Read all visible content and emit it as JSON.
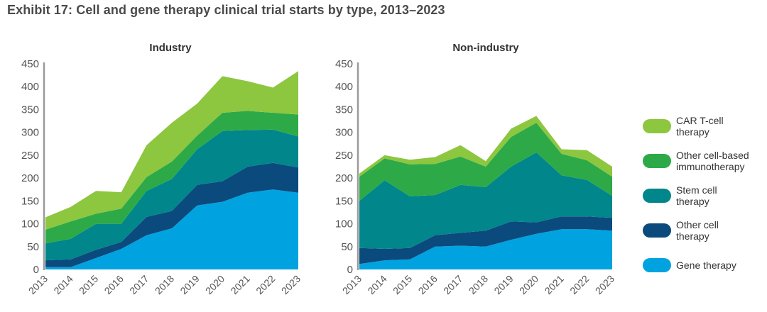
{
  "title": "Exhibit 17: Cell and gene therapy clinical trial starts by type, 2013–2023",
  "chart_data": [
    {
      "type": "area",
      "stacked": true,
      "title": "Industry",
      "xlabel": "",
      "ylabel": "",
      "ylim": [
        0,
        450
      ],
      "yticks": [
        0,
        50,
        100,
        150,
        200,
        250,
        300,
        350,
        400,
        450
      ],
      "categories": [
        "2013",
        "2014",
        "2015",
        "2016",
        "2017",
        "2018",
        "2019",
        "2020",
        "2021",
        "2022",
        "2023"
      ],
      "series": [
        {
          "name": "Gene therapy",
          "color": "#00a3e0",
          "values": [
            5,
            5,
            25,
            45,
            75,
            90,
            140,
            148,
            168,
            175,
            168
          ]
        },
        {
          "name": "Other cell therapy",
          "color": "#0b4a7d",
          "values": [
            15,
            17,
            18,
            15,
            40,
            38,
            45,
            45,
            57,
            58,
            55
          ]
        },
        {
          "name": "Stem cell therapy",
          "color": "#00868b",
          "values": [
            37,
            45,
            57,
            40,
            57,
            70,
            78,
            110,
            80,
            73,
            68
          ]
        },
        {
          "name": "Other cell-based immunotherapy",
          "color": "#2daa47",
          "values": [
            30,
            38,
            22,
            33,
            30,
            38,
            30,
            40,
            42,
            37,
            48
          ]
        },
        {
          "name": "CAR T-cell therapy",
          "color": "#8dc63f",
          "values": [
            27,
            32,
            50,
            36,
            70,
            85,
            70,
            80,
            65,
            55,
            95
          ]
        }
      ]
    },
    {
      "type": "area",
      "stacked": true,
      "title": "Non-industry",
      "xlabel": "",
      "ylabel": "",
      "ylim": [
        0,
        450
      ],
      "yticks": [
        0,
        50,
        100,
        150,
        200,
        250,
        300,
        350,
        400,
        450
      ],
      "categories": [
        "2013",
        "2014",
        "2015",
        "2016",
        "2017",
        "2018",
        "2019",
        "2020",
        "2021",
        "2022",
        "2023"
      ],
      "series": [
        {
          "name": "Gene therapy",
          "color": "#00a3e0",
          "values": [
            12,
            20,
            22,
            50,
            52,
            50,
            65,
            78,
            88,
            88,
            85
          ]
        },
        {
          "name": "Other cell therapy",
          "color": "#0b4a7d",
          "values": [
            35,
            25,
            25,
            25,
            28,
            35,
            40,
            25,
            28,
            28,
            28
          ]
        },
        {
          "name": "Stem cell therapy",
          "color": "#00868b",
          "values": [
            103,
            150,
            113,
            88,
            105,
            95,
            120,
            153,
            90,
            80,
            48
          ]
        },
        {
          "name": "Other cell-based immunotherapy",
          "color": "#2daa47",
          "values": [
            53,
            48,
            70,
            68,
            62,
            45,
            65,
            65,
            47,
            43,
            42
          ]
        },
        {
          "name": "CAR T-cell therapy",
          "color": "#8dc63f",
          "values": [
            7,
            7,
            10,
            15,
            25,
            12,
            18,
            15,
            10,
            22,
            22
          ]
        }
      ]
    }
  ],
  "legend": [
    {
      "label": "CAR T-cell therapy",
      "color": "#8dc63f"
    },
    {
      "label": "Other cell-based immunotherapy",
      "color": "#2daa47"
    },
    {
      "label": "Stem cell therapy",
      "color": "#00868b"
    },
    {
      "label": "Other cell therapy",
      "color": "#0b4a7d"
    },
    {
      "label": "Gene therapy",
      "color": "#00a3e0"
    }
  ]
}
